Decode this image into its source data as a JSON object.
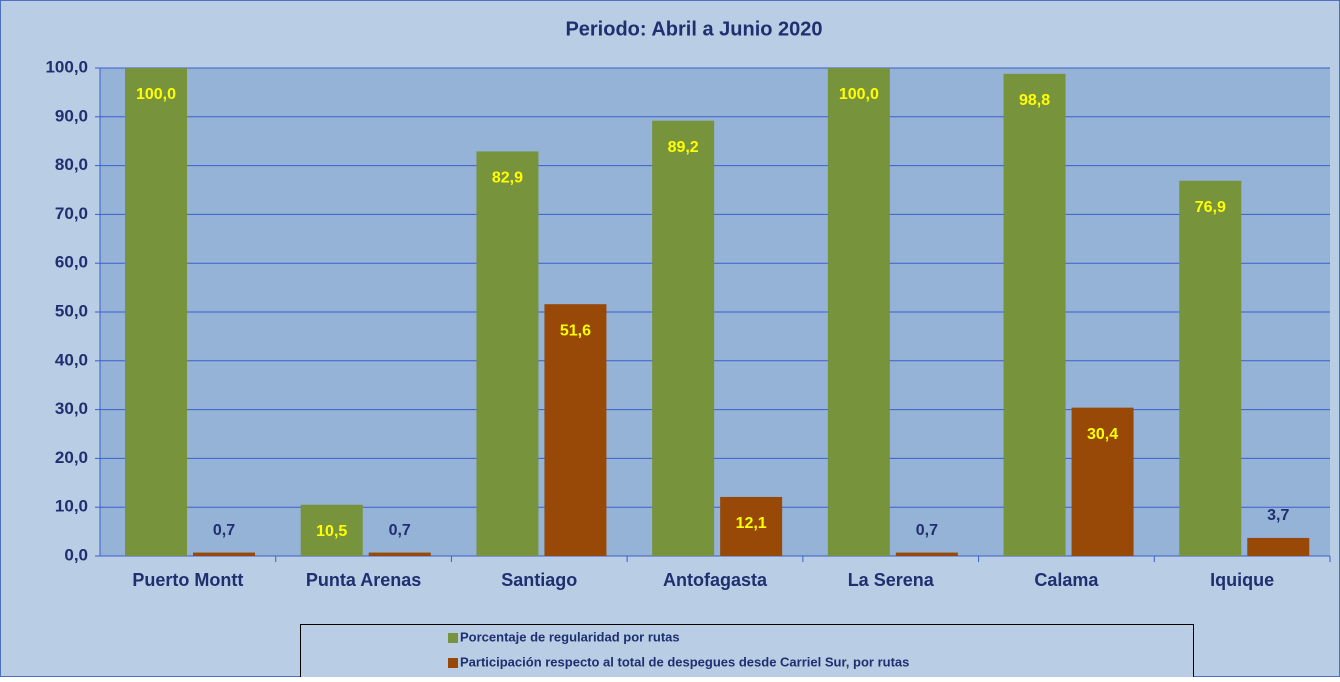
{
  "chart_data": {
    "type": "bar",
    "title": "Periodo:  Abril a Junio  2020",
    "categories": [
      "Puerto Montt",
      "Punta Arenas",
      "Santiago",
      "Antofagasta",
      "La Serena",
      "Calama",
      "Iquique"
    ],
    "series": [
      {
        "name": "Porcentaje de regularidad por rutas",
        "color": "#77933c",
        "values": [
          100,
          10.5,
          82.9,
          89.2,
          100,
          98.8,
          76.9
        ],
        "value_labels": [
          "100,0",
          "10,5",
          "82,9",
          "89,2",
          "100,0",
          "98,8",
          "76,9"
        ]
      },
      {
        "name": "Participación respecto al total de despegues desde Carriel Sur, por rutas",
        "color": "#984807",
        "values": [
          0.7,
          0.7,
          51.6,
          12.1,
          0.7,
          30.4,
          3.7
        ],
        "value_labels": [
          "0,7",
          "0,7",
          "51,6",
          "12,1",
          "0,7",
          "30,4",
          "3,7"
        ]
      }
    ],
    "ylim": [
      0,
      100
    ],
    "yticks": [
      {
        "value": 0,
        "label": "0,0"
      },
      {
        "value": 10,
        "label": "10,0"
      },
      {
        "value": 20,
        "label": "20,0"
      },
      {
        "value": 30,
        "label": "30,0"
      },
      {
        "value": 40,
        "label": "40,0"
      },
      {
        "value": 50,
        "label": "50,0"
      },
      {
        "value": 60,
        "label": "60,0"
      },
      {
        "value": 70,
        "label": "70,0"
      },
      {
        "value": 80,
        "label": "80,0"
      },
      {
        "value": 90,
        "label": "90,0"
      },
      {
        "value": 100,
        "label": "100,0"
      }
    ],
    "grid": true
  }
}
